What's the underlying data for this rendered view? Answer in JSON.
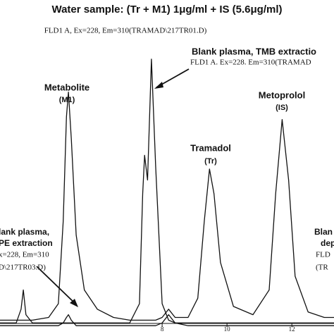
{
  "chart_data": {
    "type": "line",
    "title": "Water sample: (Tr + M1) 1μg/ml + IS (5.6μg/ml)",
    "subtitle": "FLD1 A, Ex=228, Em=310(TRAMAD\\217TR01.D)",
    "annotations": {
      "tmb": [
        "Blank plasma, TMB extractio",
        "FLD1 A. Ex=228. Em=310(TRAMAD"
      ],
      "m1": [
        "Metabolite",
        "(M1)"
      ],
      "tr": [
        "Tramadol",
        "(Tr)"
      ],
      "is": [
        "Metoprolol",
        "(IS)"
      ],
      "pe": [
        "lank plasma,",
        "PE extraction",
        "x=228, Em=310",
        "D\\217TR03.D)"
      ],
      "dep": [
        "Blan",
        "dep",
        "FLD",
        "(TR"
      ]
    },
    "x": [
      3.0,
      3.5,
      3.65,
      3.72,
      3.8,
      4.0,
      4.5,
      4.8,
      4.95,
      5.05,
      5.11,
      5.2,
      5.35,
      5.6,
      6.0,
      6.5,
      7.0,
      7.3,
      7.4,
      7.46,
      7.55,
      7.67,
      7.8,
      8.0,
      8.2,
      8.4,
      8.8,
      9.1,
      9.3,
      9.46,
      9.6,
      9.8,
      10.2,
      10.8,
      11.3,
      11.5,
      11.7,
      11.9,
      12.1,
      12.5,
      13.0,
      13.3
    ],
    "series": [
      {
        "color": "#111111",
        "values": [
          4,
          4,
          4,
          4,
          4,
          4,
          5,
          10,
          40,
          78,
          87,
          70,
          35,
          15,
          8,
          5,
          4,
          4,
          4,
          4,
          4,
          4,
          4,
          5,
          8,
          5,
          5,
          12,
          40,
          59,
          50,
          25,
          9,
          6,
          15,
          50,
          77,
          55,
          20,
          7,
          5,
          5
        ]
      },
      {
        "color": "#111111",
        "values": [
          3,
          3,
          8,
          15,
          6,
          3,
          3,
          3,
          3,
          3,
          3,
          3,
          3,
          3,
          3,
          3,
          3,
          10,
          50,
          64,
          55,
          99,
          60,
          10,
          4,
          3,
          3,
          3,
          3,
          3,
          3,
          3,
          3,
          3,
          3,
          3,
          3,
          3,
          3,
          3,
          3,
          3
        ]
      },
      {
        "color": "#111111",
        "values": [
          2,
          2,
          2,
          2,
          2,
          2,
          2,
          2,
          3,
          5,
          6,
          4,
          2,
          2,
          2,
          2,
          2,
          2,
          2,
          2,
          2,
          2,
          2,
          3,
          6,
          3,
          2,
          2,
          2,
          2,
          2,
          2,
          2,
          2,
          2,
          2,
          2,
          2,
          2,
          2,
          2,
          2
        ]
      }
    ],
    "xlim": [
      3.0,
      13.3
    ],
    "ylim": [
      0,
      100
    ],
    "xticks": [
      8,
      10,
      12
    ]
  }
}
